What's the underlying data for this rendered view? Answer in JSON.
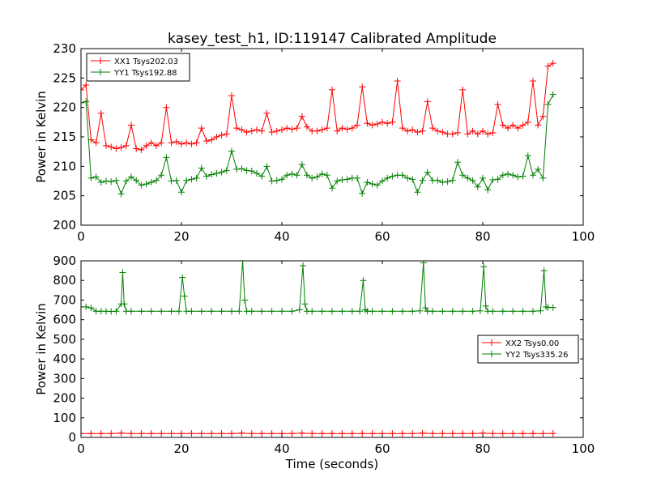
{
  "figure": {
    "title": "kasey_test_h1, ID:119147 Calibrated Amplitude",
    "background": "#ffffff"
  },
  "chart_data": [
    {
      "type": "line",
      "xlabel": "",
      "ylabel": "Power in Kelvin",
      "xlim": [
        0,
        100
      ],
      "ylim": [
        200,
        230
      ],
      "xticks": [
        0,
        20,
        40,
        60,
        80,
        100
      ],
      "yticks": [
        200,
        205,
        210,
        215,
        220,
        225,
        230
      ],
      "legend_position": "upper-left",
      "grid": false,
      "marker": "+",
      "series": [
        {
          "name": "XX1 Tsys202.03",
          "color": "#ff0000",
          "x": [
            0,
            1,
            2,
            3,
            4,
            5,
            6,
            7,
            8,
            9,
            10,
            11,
            12,
            13,
            14,
            15,
            16,
            17,
            18,
            19,
            20,
            21,
            22,
            23,
            24,
            25,
            26,
            27,
            28,
            29,
            30,
            31,
            32,
            33,
            34,
            35,
            36,
            37,
            38,
            39,
            40,
            41,
            42,
            43,
            44,
            45,
            46,
            47,
            48,
            49,
            50,
            51,
            52,
            53,
            54,
            55,
            56,
            57,
            58,
            59,
            60,
            61,
            62,
            63,
            64,
            65,
            66,
            67,
            68,
            69,
            70,
            71,
            72,
            73,
            74,
            75,
            76,
            77,
            78,
            79,
            80,
            81,
            82,
            83,
            84,
            85,
            86,
            87,
            88,
            89,
            90,
            91,
            92,
            93,
            94
          ],
          "y": [
            223,
            223.8,
            214.5,
            214,
            219,
            213.5,
            213.3,
            213,
            213.2,
            213.5,
            217,
            213,
            212.8,
            213.5,
            214,
            213.5,
            214,
            220,
            214,
            214.2,
            213.8,
            214,
            213.8,
            214,
            216.5,
            214.3,
            214.5,
            215,
            215.3,
            215.5,
            222,
            216.5,
            216.2,
            215.8,
            216,
            216.2,
            216,
            219,
            215.8,
            216,
            216.2,
            216.5,
            216.3,
            216.5,
            218.5,
            216.7,
            216,
            216,
            216.2,
            216.5,
            223,
            216,
            216.5,
            216.3,
            216.5,
            217,
            223.5,
            217.3,
            217,
            217.2,
            217.5,
            217.3,
            217.5,
            224.5,
            216.5,
            216,
            216.2,
            215.8,
            216,
            221,
            216.5,
            216,
            215.8,
            215.5,
            215.5,
            215.7,
            223,
            215.5,
            216,
            215.5,
            216,
            215.5,
            215.7,
            220.5,
            217,
            216.5,
            217,
            216.5,
            217,
            217.5,
            224.5,
            217,
            218.5,
            227,
            227.5
          ]
        },
        {
          "name": "YY1 Tsys192.88",
          "color": "#008000",
          "x": [
            0,
            1,
            2,
            3,
            4,
            5,
            6,
            7,
            8,
            9,
            10,
            11,
            12,
            13,
            14,
            15,
            16,
            17,
            18,
            19,
            20,
            21,
            22,
            23,
            24,
            25,
            26,
            27,
            28,
            29,
            30,
            31,
            32,
            33,
            34,
            35,
            36,
            37,
            38,
            39,
            40,
            41,
            42,
            43,
            44,
            45,
            46,
            47,
            48,
            49,
            50,
            51,
            52,
            53,
            54,
            55,
            56,
            57,
            58,
            59,
            60,
            61,
            62,
            63,
            64,
            65,
            66,
            67,
            68,
            69,
            70,
            71,
            72,
            73,
            74,
            75,
            76,
            77,
            78,
            79,
            80,
            81,
            82,
            83,
            84,
            85,
            86,
            87,
            88,
            89,
            90,
            91,
            92,
            93,
            94
          ],
          "y": [
            220.8,
            221,
            208,
            208.2,
            207.3,
            207.5,
            207.4,
            207.6,
            205.3,
            207.5,
            208.2,
            207.6,
            206.8,
            207,
            207.3,
            207.6,
            208.5,
            211.5,
            207.5,
            207.6,
            205.6,
            207.6,
            207.8,
            208,
            209.7,
            208.3,
            208.6,
            208.8,
            209,
            209.3,
            212.6,
            209.5,
            209.6,
            209.3,
            209.2,
            208.8,
            208.3,
            210,
            207.5,
            207.6,
            207.8,
            208.5,
            208.7,
            208.5,
            210.3,
            208.5,
            208,
            208.2,
            208.7,
            208.5,
            206.3,
            207.5,
            207.7,
            207.8,
            208,
            208,
            205.4,
            207.3,
            207,
            206.8,
            207.5,
            208,
            208.3,
            208.5,
            208.5,
            208,
            207.8,
            205.6,
            207.6,
            209,
            207.6,
            207.6,
            207.3,
            207.4,
            207.6,
            210.7,
            208.5,
            208,
            207.6,
            206.5,
            208,
            206,
            207.7,
            207.8,
            208.5,
            208.7,
            208.5,
            208.2,
            208.3,
            211.8,
            208.5,
            209.5,
            208,
            220.5,
            222.2
          ]
        }
      ]
    },
    {
      "type": "line",
      "xlabel": "Time (seconds)",
      "ylabel": "Power in Kelvin",
      "xlim": [
        0,
        100
      ],
      "ylim": [
        0,
        900
      ],
      "xticks": [
        0,
        20,
        40,
        60,
        80,
        100
      ],
      "yticks": [
        0,
        100,
        200,
        300,
        400,
        500,
        600,
        700,
        800,
        900
      ],
      "legend_position": "center-right",
      "grid": false,
      "marker": "+",
      "series": [
        {
          "name": "XX2 Tsys0.00",
          "color": "#ff0000",
          "x": [
            0,
            2,
            4,
            6,
            8,
            10,
            12,
            14,
            16,
            18,
            20,
            22,
            24,
            26,
            28,
            30,
            32,
            34,
            36,
            38,
            40,
            42,
            44,
            46,
            48,
            50,
            52,
            54,
            56,
            58,
            60,
            62,
            64,
            66,
            68,
            70,
            72,
            74,
            76,
            78,
            80,
            82,
            84,
            86,
            88,
            90,
            92,
            94
          ],
          "y": [
            20,
            20,
            20,
            20,
            22,
            20,
            20,
            20,
            20,
            20,
            20,
            20,
            20,
            20,
            20,
            20,
            22,
            20,
            20,
            20,
            20,
            20,
            22,
            20,
            20,
            20,
            20,
            20,
            20,
            20,
            20,
            20,
            20,
            20,
            22,
            20,
            20,
            20,
            20,
            20,
            22,
            20,
            20,
            20,
            20,
            20,
            20,
            20
          ]
        },
        {
          "name": "YY2 Tsys335.26",
          "color": "#008000",
          "x": [
            0,
            1,
            2,
            3,
            4,
            5,
            6,
            7,
            8,
            8.3,
            8.6,
            9,
            10,
            12,
            14,
            16,
            18,
            19.5,
            20.2,
            20.6,
            21,
            22,
            24,
            26,
            28,
            30,
            31.5,
            32.2,
            32.6,
            33,
            34,
            36,
            38,
            40,
            42,
            43.5,
            44.2,
            44.6,
            45,
            46,
            48,
            50,
            52,
            54,
            55.5,
            56.2,
            56.6,
            57,
            58,
            60,
            62,
            64,
            66,
            67.5,
            68.2,
            68.6,
            69,
            70,
            72,
            74,
            76,
            78,
            79.5,
            80.2,
            80.6,
            81,
            82,
            84,
            86,
            88,
            90,
            91.5,
            92.2,
            92.6,
            93,
            94
          ],
          "y": [
            665,
            665,
            660,
            643,
            643,
            643,
            642,
            643,
            680,
            840,
            680,
            643,
            643,
            643,
            643,
            643,
            643,
            643,
            815,
            720,
            643,
            643,
            643,
            643,
            643,
            643,
            643,
            900,
            700,
            643,
            643,
            643,
            643,
            643,
            643,
            650,
            875,
            680,
            643,
            643,
            643,
            643,
            643,
            643,
            643,
            800,
            650,
            643,
            643,
            643,
            643,
            643,
            643,
            645,
            890,
            660,
            643,
            643,
            643,
            643,
            643,
            643,
            645,
            870,
            670,
            643,
            643,
            643,
            643,
            643,
            643,
            645,
            850,
            665,
            662,
            662
          ]
        }
      ]
    }
  ]
}
